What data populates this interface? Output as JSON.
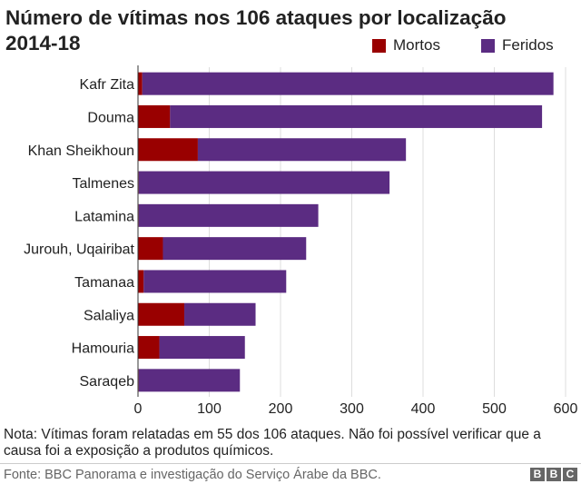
{
  "chart_data": {
    "type": "bar",
    "orientation": "horizontal",
    "stacked": true,
    "title": "Número de vítimas nos 106 ataques por localização 2014-18",
    "categories": [
      "Kafr Zita",
      "Douma",
      "Khan Sheikhoun",
      "Talmenes",
      "Latamina",
      "Jurouh, Uqairibat",
      "Tamanaa",
      "Salaliya",
      "Hamouria",
      "Saraqeb"
    ],
    "series": [
      {
        "name": "Mortos",
        "color": "#990000",
        "values": [
          6,
          45,
          84,
          1,
          1,
          35,
          8,
          65,
          30,
          1
        ]
      },
      {
        "name": "Feridos",
        "color": "#5b2c82",
        "values": [
          577,
          522,
          292,
          352,
          252,
          201,
          200,
          100,
          120,
          142
        ]
      }
    ],
    "xlim": [
      0,
      600
    ],
    "xticks": [
      0,
      100,
      200,
      300,
      400,
      500,
      600
    ],
    "xlabel": "",
    "ylabel": "",
    "grid": "vertical",
    "legend_position": "top-right"
  },
  "note": "Nota: Vítimas foram relatadas em 55 dos 106 ataques. Não foi possível verificar que a causa foi a exposição a produtos químicos.",
  "source": "Fonte: BBC Panorama e investigação do Serviço Árabe da BBC.",
  "logo": {
    "letters": [
      "B",
      "B",
      "C"
    ]
  },
  "colors": {
    "grid": "#dddddd",
    "axis": "#333333",
    "text": "#222222"
  }
}
